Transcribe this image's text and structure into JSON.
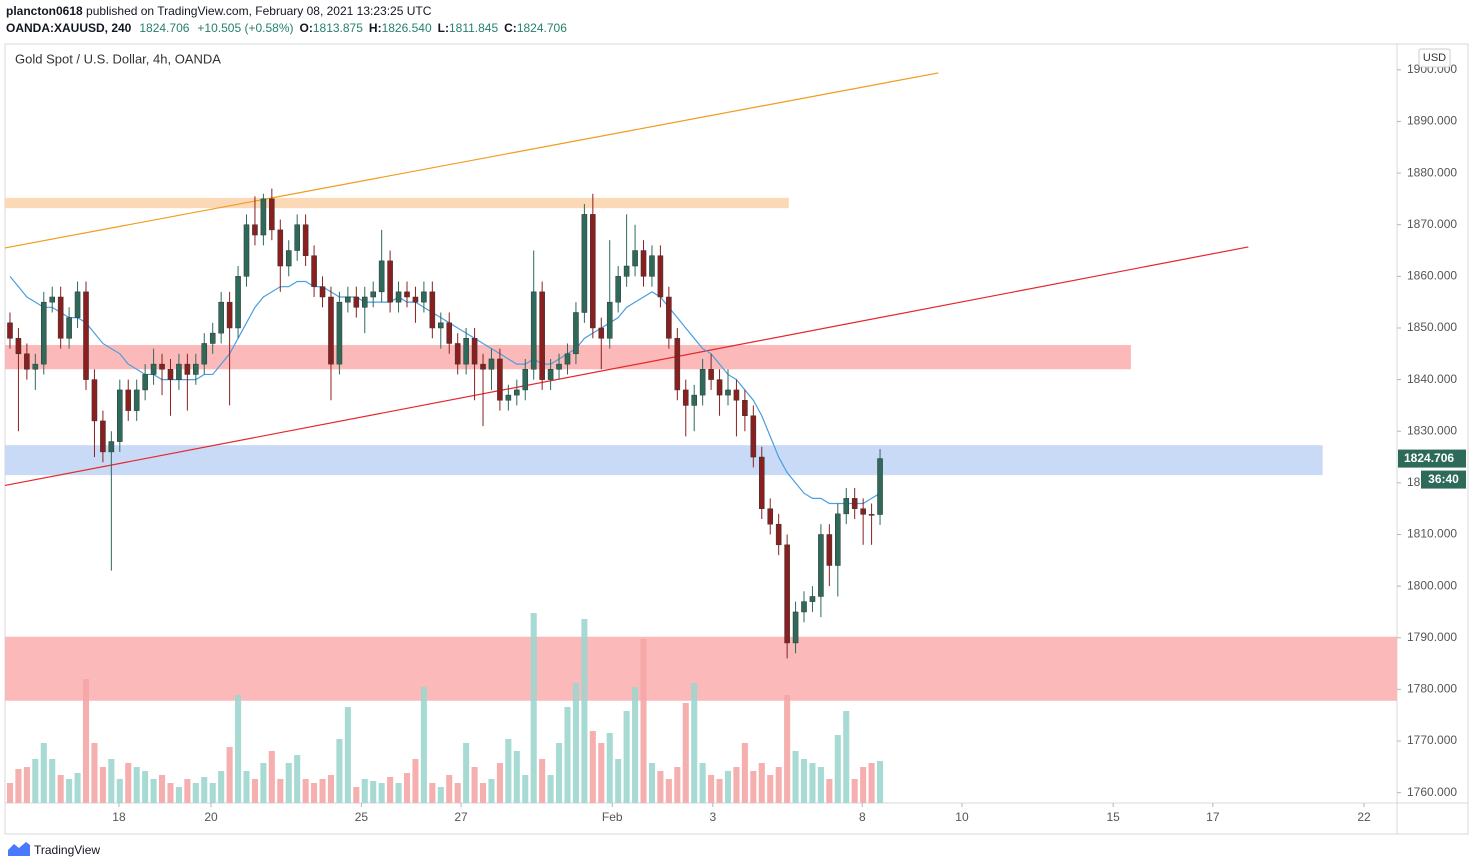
{
  "header": {
    "author": "plancton0618",
    "published": "published on TradingView.com, February 08, 2021 13:23:25 UTC",
    "symbol": "OANDA:XAUUSD, 240",
    "last": "1824.706",
    "change": "+10.505 (+0.58%)",
    "o_label": "O:",
    "o": "1813.875",
    "h_label": "H:",
    "h": "1826.540",
    "l_label": "L:",
    "l": "1811.845",
    "c_label": "C:",
    "c": "1824.706",
    "brand": "TradingView"
  },
  "chart_data": {
    "type": "candlestick",
    "title": "Gold Spot / U.S. Dollar, 4h, OANDA",
    "currency": "USD",
    "timer": "36:40",
    "up_color": "#2d6a5a",
    "down_color": "#8a1f1f",
    "up_volume_color": "#9fd6cf",
    "down_volume_color": "#f5a6a6",
    "ma_color": "#4a9fe0",
    "grid": false,
    "xlim": [
      -0.59,
      164.2
    ],
    "xticks": [
      {
        "value": 12.9,
        "label": "18"
      },
      {
        "value": 23.8,
        "label": "20"
      },
      {
        "value": 41.6,
        "label": "25"
      },
      {
        "value": 53.4,
        "label": "27"
      },
      {
        "value": 71.3,
        "label": "Feb"
      },
      {
        "value": 83.2,
        "label": "3"
      },
      {
        "value": 100.9,
        "label": "8"
      },
      {
        "value": 112.7,
        "label": "10"
      },
      {
        "value": 130.6,
        "label": "15"
      },
      {
        "value": 142.4,
        "label": "17"
      },
      {
        "value": 160.3,
        "label": "22"
      }
    ],
    "ylim": [
      1758,
      1905
    ],
    "yticks": [
      {
        "value": 1760,
        "label": "1760.000"
      },
      {
        "value": 1770,
        "label": "1770.000"
      },
      {
        "value": 1780,
        "label": "1780.000"
      },
      {
        "value": 1790,
        "label": "1790.000"
      },
      {
        "value": 1800,
        "label": "1800.000"
      },
      {
        "value": 1810,
        "label": "1810.000"
      },
      {
        "value": 1820,
        "label": "1820.000"
      },
      {
        "value": 1830,
        "label": "1830.000"
      },
      {
        "value": 1840,
        "label": "1840.000"
      },
      {
        "value": 1850,
        "label": "1850.000"
      },
      {
        "value": 1860,
        "label": "1860.000"
      },
      {
        "value": 1870,
        "label": "1870.000"
      },
      {
        "value": 1880,
        "label": "1880.000"
      },
      {
        "value": 1890,
        "label": "1890.000"
      },
      {
        "value": 1900,
        "label": "1900.000"
      }
    ],
    "open": [
      1851,
      1848,
      1845,
      1842,
      1843,
      1855,
      1856,
      1848,
      1852,
      1857,
      1840,
      1832,
      1826,
      1828,
      1838,
      1834,
      1838,
      1841,
      1843,
      1842,
      1840,
      1843,
      1841,
      1843,
      1847,
      1849,
      1855,
      1850,
      1860,
      1870,
      1868,
      1875,
      1869,
      1862,
      1865,
      1870,
      1864,
      1858,
      1856,
      1843,
      1855,
      1856,
      1854,
      1856,
      1857,
      1863,
      1855,
      1857,
      1856,
      1855,
      1857,
      1850,
      1851,
      1847,
      1843,
      1848,
      1843,
      1842,
      1844,
      1836,
      1837,
      1838,
      1842,
      1857,
      1840,
      1842,
      1843,
      1845,
      1853,
      1872,
      1850,
      1848,
      1855,
      1860,
      1862,
      1865,
      1860,
      1864,
      1856,
      1848,
      1838,
      1835,
      1837,
      1842,
      1840,
      1837,
      1838,
      1836,
      1833,
      1825,
      1815,
      1812,
      1808,
      1789,
      1795,
      1797,
      1798,
      1810,
      1804,
      1814,
      1817,
      1815,
      1813.9,
      1813.875
    ],
    "high": [
      1853,
      1850,
      1847,
      1845,
      1857,
      1858,
      1858,
      1854,
      1859,
      1859,
      1842,
      1834,
      1830,
      1840,
      1840,
      1840,
      1843,
      1846,
      1845,
      1844,
      1845,
      1845,
      1845,
      1849,
      1851,
      1857,
      1857,
      1862,
      1872,
      1875.5,
      1876,
      1877,
      1871,
      1867,
      1872,
      1872,
      1866,
      1860,
      1858,
      1857,
      1858,
      1858,
      1858,
      1859,
      1869,
      1865,
      1859,
      1859,
      1858,
      1859,
      1859,
      1853,
      1853,
      1849,
      1850,
      1850,
      1845,
      1846,
      1846,
      1839,
      1840,
      1844,
      1865,
      1859,
      1844,
      1845,
      1847,
      1855,
      1874,
      1876,
      1852,
      1867,
      1862,
      1872,
      1870,
      1867,
      1866,
      1866,
      1858,
      1850,
      1840,
      1839,
      1844,
      1845,
      1842,
      1842,
      1840,
      1838,
      1835,
      1827,
      1817,
      1814,
      1810,
      1797,
      1799,
      1800,
      1812,
      1812,
      1816,
      1819,
      1819,
      1817,
      1816,
      1826.54
    ],
    "low": [
      1846,
      1830,
      1840,
      1838,
      1841,
      1853,
      1846,
      1846,
      1850,
      1838,
      1825,
      1824,
      1803,
      1826,
      1832,
      1832,
      1836,
      1839,
      1837,
      1833,
      1838,
      1834,
      1839,
      1841,
      1845,
      1847,
      1835,
      1848,
      1858,
      1866,
      1866,
      1867,
      1857,
      1860,
      1863,
      1862,
      1856,
      1854,
      1836,
      1841,
      1853,
      1852,
      1849,
      1854,
      1855,
      1853,
      1853,
      1854,
      1851,
      1853,
      1848,
      1846,
      1845,
      1841,
      1841,
      1836,
      1831,
      1838,
      1834,
      1834,
      1835,
      1836,
      1840,
      1838,
      1838,
      1840,
      1841,
      1843,
      1851,
      1848,
      1842,
      1846,
      1853,
      1858,
      1860,
      1858,
      1858,
      1854,
      1846,
      1836,
      1829,
      1830,
      1835,
      1838,
      1833,
      1835,
      1829,
      1830,
      1823,
      1813,
      1810,
      1806,
      1786,
      1787,
      1793,
      1795,
      1794,
      1800,
      1798,
      1812,
      1813,
      1808,
      1808,
      1811.845
    ],
    "close": [
      1848,
      1845,
      1842,
      1843,
      1855,
      1856,
      1848,
      1852,
      1857,
      1840,
      1832,
      1826,
      1828,
      1838,
      1834,
      1838,
      1841,
      1843,
      1842,
      1840,
      1843,
      1841,
      1843,
      1847,
      1849,
      1855,
      1850,
      1860,
      1870,
      1868,
      1875,
      1869,
      1862,
      1865,
      1870,
      1864,
      1858,
      1856,
      1843,
      1855,
      1856,
      1854,
      1856,
      1857,
      1863,
      1855,
      1857,
      1856,
      1855,
      1857,
      1850,
      1851,
      1847,
      1843,
      1848,
      1843,
      1842,
      1844,
      1836,
      1837,
      1838,
      1842,
      1857,
      1840,
      1842,
      1843,
      1845,
      1853,
      1872,
      1850,
      1848,
      1855,
      1860,
      1862,
      1865,
      1860,
      1864,
      1856,
      1848,
      1838,
      1835,
      1837,
      1842,
      1840,
      1837,
      1838,
      1836,
      1833,
      1825,
      1815,
      1812,
      1808,
      1789,
      1795,
      1797,
      1798,
      1810,
      1804,
      1814,
      1817,
      1815,
      1813.9,
      1813.875,
      1824.706
    ],
    "volume": [
      10,
      17,
      18,
      22,
      30,
      22,
      14,
      12,
      15,
      62,
      30,
      18,
      22,
      12,
      20,
      18,
      16,
      12,
      14,
      10,
      8,
      12,
      10,
      13,
      10,
      16,
      28,
      54,
      16,
      12,
      20,
      26,
      12,
      20,
      24,
      12,
      10,
      12,
      14,
      32,
      48,
      8,
      12,
      11,
      10,
      13,
      10,
      15,
      22,
      58,
      10,
      8,
      14,
      10,
      30,
      18,
      10,
      12,
      20,
      32,
      26,
      14,
      95,
      22,
      14,
      30,
      48,
      60,
      92,
      36,
      30,
      35,
      22,
      46,
      58,
      82,
      20,
      16,
      12,
      18,
      50,
      60,
      20,
      14,
      12,
      16,
      18,
      30,
      16,
      20,
      14,
      18,
      54,
      26,
      22,
      20,
      18,
      12,
      34,
      46,
      12,
      18,
      20,
      21
    ],
    "ma_values": [
      1860,
      1858,
      1856,
      1855,
      1854,
      1854,
      1853,
      1852,
      1852,
      1851,
      1849,
      1847,
      1846,
      1845,
      1843,
      1842,
      1841,
      1841,
      1840,
      1840,
      1840,
      1840,
      1840,
      1841,
      1841,
      1843,
      1845,
      1848,
      1851,
      1854,
      1856,
      1857,
      1858,
      1858,
      1859,
      1859,
      1858,
      1858,
      1857,
      1856,
      1856,
      1856,
      1855,
      1855,
      1855,
      1855,
      1856,
      1855,
      1855,
      1854,
      1853,
      1852,
      1851,
      1850,
      1849,
      1848,
      1847,
      1846,
      1845,
      1844,
      1843,
      1843,
      1844,
      1843,
      1843,
      1844,
      1845,
      1846,
      1848,
      1849,
      1850,
      1851,
      1852,
      1854,
      1855,
      1856,
      1857,
      1856,
      1854,
      1852,
      1850,
      1848,
      1846,
      1845,
      1843,
      1841,
      1840,
      1838,
      1836,
      1833,
      1829,
      1825,
      1822,
      1820,
      1818,
      1817,
      1817,
      1816,
      1816,
      1816,
      1816,
      1816,
      1817,
      1818
    ],
    "zones": [
      {
        "x_end": 92.2,
        "y": [
          1873.2,
          1875.2
        ],
        "color": "#fbd9b6"
      },
      {
        "x_end": 132.7,
        "y": [
          1842,
          1846.7
        ],
        "color": "#fcb9b9"
      },
      {
        "x_end": 155.4,
        "y": [
          1821.5,
          1827.3
        ],
        "color": "#c9daf6"
      },
      {
        "x_end": 164.2,
        "y": [
          1777.8,
          1790.2
        ],
        "color": "#fcb9b9"
      }
    ],
    "trendlines": [
      {
        "x": [
          -0.59,
          109.9
        ],
        "y": [
          1865.5,
          1899.4
        ],
        "color": "#f39a1e"
      },
      {
        "x": [
          -0.59,
          146.6
        ],
        "y": [
          1819.5,
          1865.7
        ],
        "color": "#e5262a"
      }
    ]
  }
}
